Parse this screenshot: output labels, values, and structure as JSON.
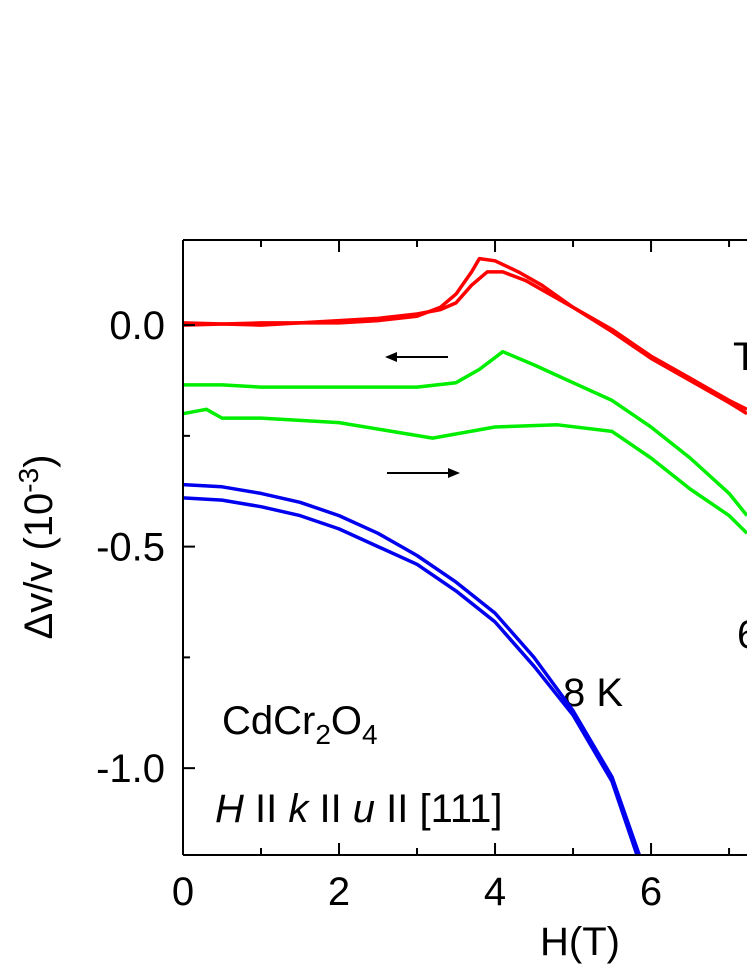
{
  "chart_data": {
    "type": "line",
    "x_label": "H(T)",
    "y_label_parts": [
      "Δv/v (10",
      "-3",
      ")"
    ],
    "xlim": [
      0,
      7.23
    ],
    "ylim": [
      -1.196,
      0.192
    ],
    "xticks": [
      0,
      2,
      4,
      6
    ],
    "xminor": [
      1,
      3,
      5,
      7
    ],
    "yticks": [
      {
        "value": 0,
        "label": "0.0"
      },
      {
        "value": -0.5,
        "label": "-0.5"
      },
      {
        "value": -1.0,
        "label": "-1.0"
      }
    ],
    "yminor": [
      -0.25,
      -0.75
    ],
    "annotations": {
      "temperature": "8 K",
      "sample_parts": [
        "CdCr",
        "2",
        "O",
        "4"
      ],
      "direction_parts": [
        "H",
        " II ",
        "k",
        " II ",
        "u",
        " II [111]"
      ],
      "cut_right_top": "T",
      "cut_right_mid": "6"
    },
    "series": [
      {
        "color": "#ff0000",
        "x": [
          0,
          1,
          2,
          2.5,
          3,
          3.3,
          3.5,
          3.7,
          3.8,
          4.0,
          4.3,
          4.6,
          5.0,
          5.5,
          6.0,
          6.5,
          7.0,
          7.23
        ],
        "values": [
          0,
          0.005,
          0.005,
          0.01,
          0.02,
          0.04,
          0.07,
          0.12,
          0.15,
          0.145,
          0.12,
          0.09,
          0.04,
          -0.01,
          -0.07,
          -0.12,
          -0.17,
          -0.19
        ]
      },
      {
        "color": "#ff0000",
        "x": [
          0,
          1,
          2,
          2.5,
          3,
          3.3,
          3.5,
          3.7,
          3.9,
          4.1,
          4.4,
          4.7,
          5.0,
          5.5,
          6.0,
          6.5,
          7.0,
          7.23
        ],
        "values": [
          0.005,
          0.0,
          0.01,
          0.015,
          0.025,
          0.035,
          0.05,
          0.09,
          0.12,
          0.12,
          0.1,
          0.07,
          0.04,
          -0.015,
          -0.075,
          -0.125,
          -0.175,
          -0.2
        ]
      },
      {
        "color": "#00ee00",
        "x": [
          0,
          0.5,
          1,
          2,
          3,
          3.5,
          3.8,
          4.1,
          4.5,
          5.0,
          5.5,
          6.0,
          6.5,
          7.0,
          7.23
        ],
        "values": [
          -0.135,
          -0.135,
          -0.14,
          -0.14,
          -0.14,
          -0.13,
          -0.1,
          -0.06,
          -0.09,
          -0.13,
          -0.17,
          -0.23,
          -0.3,
          -0.38,
          -0.43
        ]
      },
      {
        "color": "#00ee00",
        "x": [
          0,
          0.3,
          0.5,
          1,
          2,
          3.2,
          4.0,
          4.8,
          5.5,
          6.0,
          6.5,
          7.0,
          7.23
        ],
        "values": [
          -0.2,
          -0.19,
          -0.21,
          -0.21,
          -0.22,
          -0.255,
          -0.23,
          -0.225,
          -0.24,
          -0.3,
          -0.37,
          -0.43,
          -0.47
        ]
      },
      {
        "color": "#0000ee",
        "x": [
          0,
          0.5,
          1,
          1.5,
          2,
          2.5,
          3,
          3.5,
          4,
          4.5,
          5,
          5.5,
          5.85
        ],
        "values": [
          -0.36,
          -0.365,
          -0.38,
          -0.4,
          -0.43,
          -0.47,
          -0.52,
          -0.58,
          -0.65,
          -0.75,
          -0.87,
          -1.02,
          -1.196
        ]
      },
      {
        "color": "#0000ee",
        "x": [
          0,
          0.5,
          1,
          1.5,
          2,
          2.5,
          3,
          3.5,
          4,
          4.5,
          5,
          5.5,
          5.82
        ],
        "values": [
          -0.39,
          -0.395,
          -0.41,
          -0.43,
          -0.46,
          -0.5,
          -0.54,
          -0.6,
          -0.67,
          -0.77,
          -0.88,
          -1.03,
          -1.196
        ]
      }
    ]
  }
}
